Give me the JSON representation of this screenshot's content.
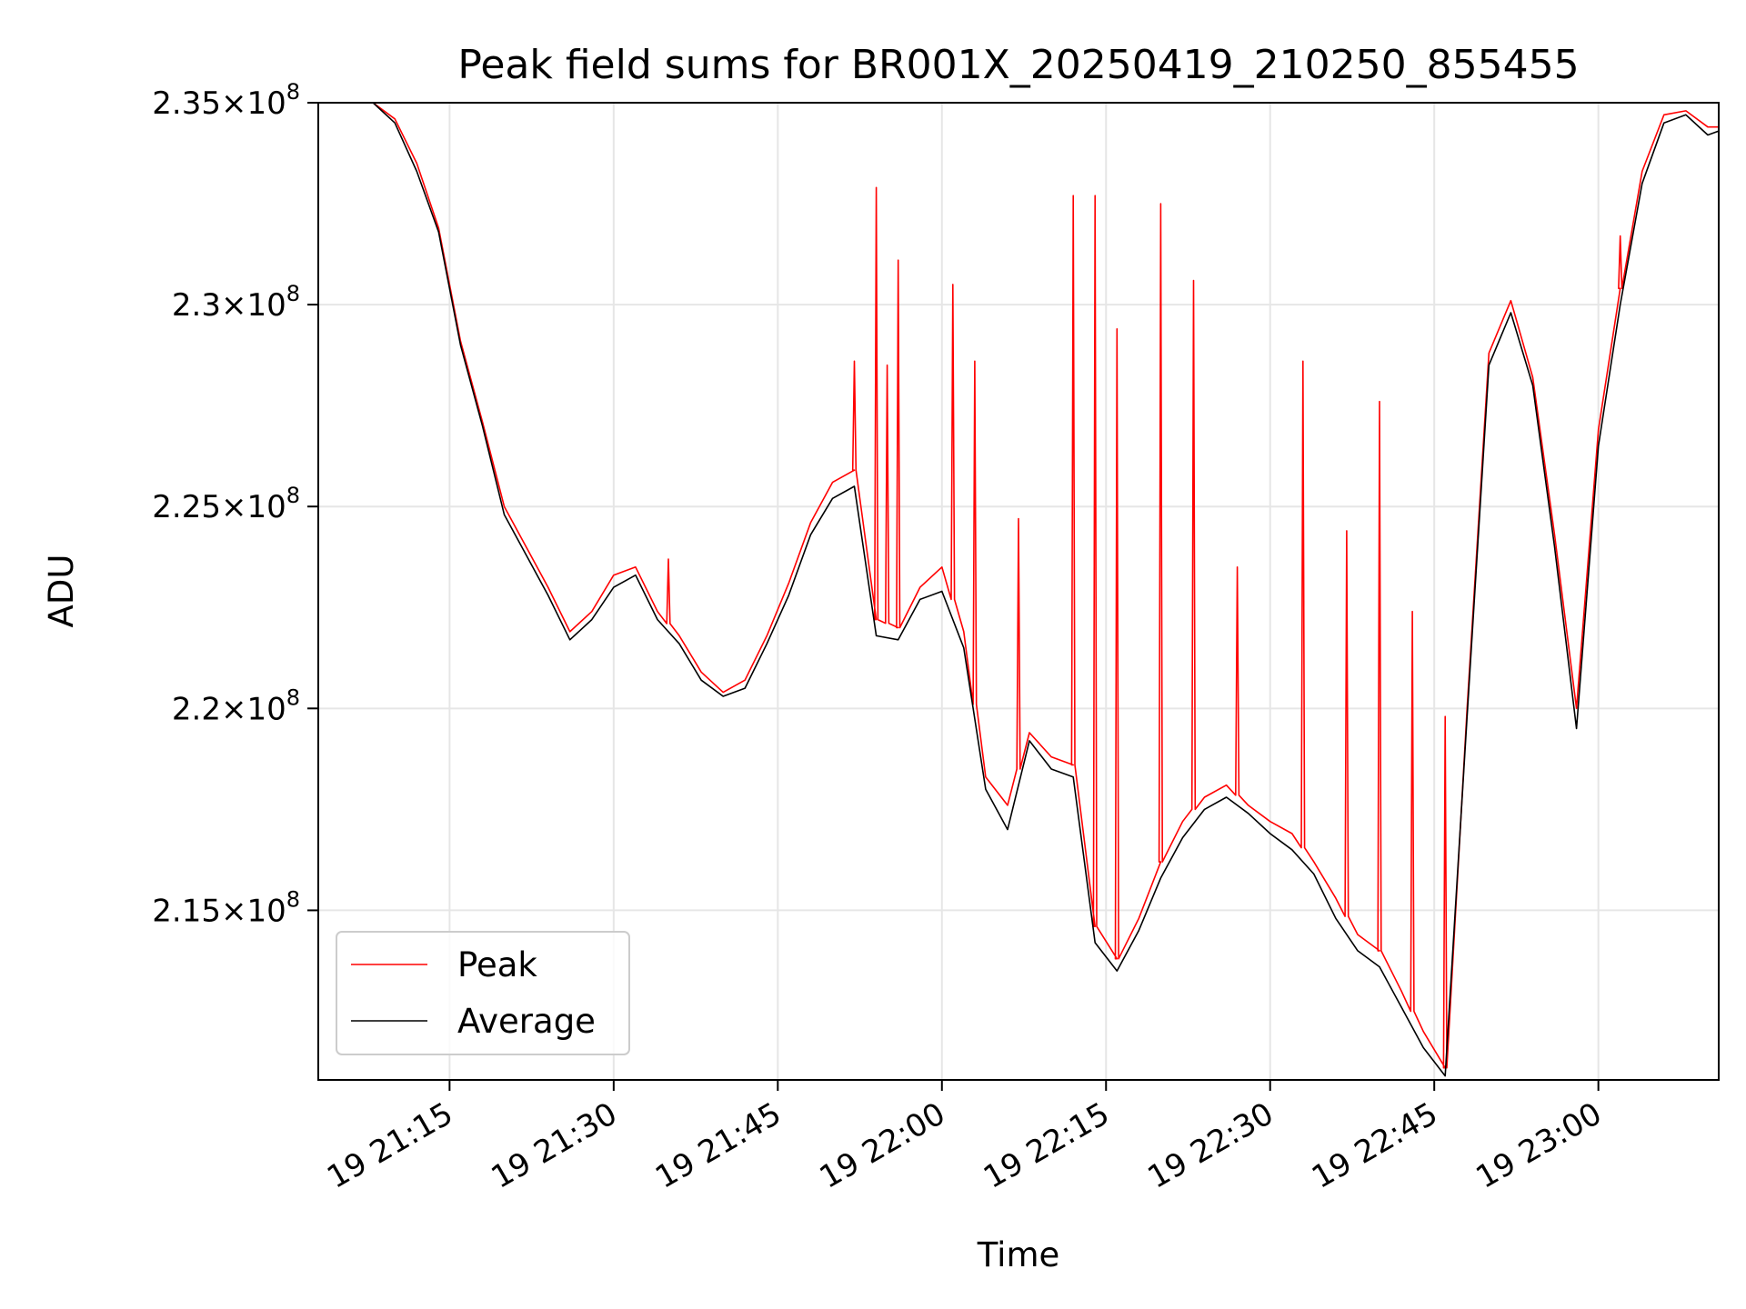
{
  "chart_data": {
    "type": "line",
    "title": "Peak field sums for BR001X_20250419_210250_855455",
    "xlabel": "Time",
    "ylabel": "ADU",
    "xlim": [
      "2025-04-19 21:03:00",
      "2025-04-19 23:11:00"
    ],
    "ylim": [
      210800000,
      235000000
    ],
    "grid": true,
    "legend_position": "lower-left",
    "x_ticks": [
      {
        "value": "2025-04-19 21:15",
        "label": "19 21:15"
      },
      {
        "value": "2025-04-19 21:30",
        "label": "19 21:30"
      },
      {
        "value": "2025-04-19 21:45",
        "label": "19 21:45"
      },
      {
        "value": "2025-04-19 22:00",
        "label": "19 22:00"
      },
      {
        "value": "2025-04-19 22:15",
        "label": "19 22:15"
      },
      {
        "value": "2025-04-19 22:30",
        "label": "19 22:30"
      },
      {
        "value": "2025-04-19 22:45",
        "label": "19 22:45"
      },
      {
        "value": "2025-04-19 23:00",
        "label": "19 23:00"
      }
    ],
    "y_ticks": [
      {
        "value": 215000000,
        "mantissa": "2.15",
        "exponent": "8"
      },
      {
        "value": 220000000,
        "mantissa": "2.2",
        "exponent": "8"
      },
      {
        "value": 225000000,
        "mantissa": "2.25",
        "exponent": "8"
      },
      {
        "value": 230000000,
        "mantissa": "2.3",
        "exponent": "8"
      },
      {
        "value": 235000000,
        "mantissa": "2.35",
        "exponent": "8"
      }
    ],
    "series": [
      {
        "name": "Average",
        "color": "#000000",
        "x": [
          "2025-04-19 21:08",
          "2025-04-19 21:10",
          "2025-04-19 21:12",
          "2025-04-19 21:14",
          "2025-04-19 21:16",
          "2025-04-19 21:18",
          "2025-04-19 21:20",
          "2025-04-19 21:22",
          "2025-04-19 21:24",
          "2025-04-19 21:26",
          "2025-04-19 21:28",
          "2025-04-19 21:30",
          "2025-04-19 21:32",
          "2025-04-19 21:34",
          "2025-04-19 21:36",
          "2025-04-19 21:38",
          "2025-04-19 21:40",
          "2025-04-19 21:42",
          "2025-04-19 21:44",
          "2025-04-19 21:46",
          "2025-04-19 21:48",
          "2025-04-19 21:50",
          "2025-04-19 21:52",
          "2025-04-19 21:54",
          "2025-04-19 21:56",
          "2025-04-19 21:58",
          "2025-04-19 22:00",
          "2025-04-19 22:02",
          "2025-04-19 22:04",
          "2025-04-19 22:06",
          "2025-04-19 22:08",
          "2025-04-19 22:10",
          "2025-04-19 22:12",
          "2025-04-19 22:14",
          "2025-04-19 22:16",
          "2025-04-19 22:18",
          "2025-04-19 22:20",
          "2025-04-19 22:22",
          "2025-04-19 22:24",
          "2025-04-19 22:26",
          "2025-04-19 22:28",
          "2025-04-19 22:30",
          "2025-04-19 22:32",
          "2025-04-19 22:34",
          "2025-04-19 22:36",
          "2025-04-19 22:38",
          "2025-04-19 22:40",
          "2025-04-19 22:42",
          "2025-04-19 22:44",
          "2025-04-19 22:46",
          "2025-04-19 22:48",
          "2025-04-19 22:50",
          "2025-04-19 22:52",
          "2025-04-19 22:54",
          "2025-04-19 22:56",
          "2025-04-19 22:58",
          "2025-04-19 23:00",
          "2025-04-19 23:02",
          "2025-04-19 23:04",
          "2025-04-19 23:06",
          "2025-04-19 23:08",
          "2025-04-19 23:10",
          "2025-04-19 23:11"
        ],
        "values": [
          235000000,
          234500000,
          233300000,
          231800000,
          229000000,
          227000000,
          224800000,
          223800000,
          222800000,
          221700000,
          222200000,
          223000000,
          223300000,
          222200000,
          221600000,
          220700000,
          220300000,
          220500000,
          221600000,
          222800000,
          224300000,
          225200000,
          225500000,
          221800000,
          221700000,
          222700000,
          222900000,
          221500000,
          218000000,
          217000000,
          219200000,
          218500000,
          218300000,
          214200000,
          213500000,
          214500000,
          215800000,
          216800000,
          217500000,
          217800000,
          217400000,
          216900000,
          216500000,
          215900000,
          214800000,
          214000000,
          213600000,
          212600000,
          211600000,
          210900000,
          219800000,
          228500000,
          229800000,
          228000000,
          224000000,
          219500000,
          226500000,
          230000000,
          233000000,
          234500000,
          234700000,
          234200000,
          234300000
        ]
      },
      {
        "name": "Peak",
        "color": "#ff0000",
        "x": [
          "2025-04-19 21:08",
          "2025-04-19 21:10",
          "2025-04-19 21:12",
          "2025-04-19 21:14",
          "2025-04-19 21:16",
          "2025-04-19 21:18",
          "2025-04-19 21:20",
          "2025-04-19 21:22",
          "2025-04-19 21:24",
          "2025-04-19 21:26",
          "2025-04-19 21:28",
          "2025-04-19 21:30",
          "2025-04-19 21:32",
          "2025-04-19 21:34",
          "2025-04-19 21:36",
          "2025-04-19 21:38",
          "2025-04-19 21:40",
          "2025-04-19 21:42",
          "2025-04-19 21:44",
          "2025-04-19 21:46",
          "2025-04-19 21:48",
          "2025-04-19 21:50",
          "2025-04-19 21:52",
          "2025-04-19 21:54",
          "2025-04-19 21:56",
          "2025-04-19 21:58",
          "2025-04-19 22:00",
          "2025-04-19 22:02",
          "2025-04-19 22:04",
          "2025-04-19 22:06",
          "2025-04-19 22:08",
          "2025-04-19 22:10",
          "2025-04-19 22:12",
          "2025-04-19 22:14",
          "2025-04-19 22:16",
          "2025-04-19 22:18",
          "2025-04-19 22:20",
          "2025-04-19 22:22",
          "2025-04-19 22:24",
          "2025-04-19 22:26",
          "2025-04-19 22:28",
          "2025-04-19 22:30",
          "2025-04-19 22:32",
          "2025-04-19 22:34",
          "2025-04-19 22:36",
          "2025-04-19 22:38",
          "2025-04-19 22:40",
          "2025-04-19 22:42",
          "2025-04-19 22:44",
          "2025-04-19 22:46",
          "2025-04-19 22:48",
          "2025-04-19 22:50",
          "2025-04-19 22:52",
          "2025-04-19 22:54",
          "2025-04-19 22:56",
          "2025-04-19 22:58",
          "2025-04-19 23:00",
          "2025-04-19 23:02",
          "2025-04-19 23:04",
          "2025-04-19 23:06",
          "2025-04-19 23:08",
          "2025-04-19 23:10",
          "2025-04-19 23:11"
        ],
        "values": [
          235000000,
          234600000,
          233500000,
          231900000,
          229100000,
          227100000,
          225000000,
          224000000,
          223000000,
          221900000,
          222400000,
          223300000,
          223500000,
          222400000,
          221800000,
          220900000,
          220400000,
          220700000,
          221800000,
          223100000,
          224600000,
          225600000,
          225900000,
          222200000,
          222000000,
          223000000,
          223500000,
          221900000,
          218300000,
          217600000,
          219400000,
          218800000,
          218600000,
          214600000,
          213800000,
          214800000,
          216200000,
          217200000,
          217800000,
          218100000,
          217600000,
          217200000,
          216900000,
          216200000,
          215300000,
          214400000,
          214000000,
          213000000,
          212000000,
          211100000,
          220000000,
          228800000,
          230100000,
          228200000,
          224300000,
          220000000,
          226900000,
          230400000,
          233300000,
          234700000,
          234800000,
          234400000,
          234400000
        ],
        "spikes": [
          {
            "x": "2025-04-19 21:35",
            "value": 223700000
          },
          {
            "x": "2025-04-19 21:52",
            "value": 228600000
          },
          {
            "x": "2025-04-19 21:54",
            "value": 232900000
          },
          {
            "x": "2025-04-19 21:55",
            "value": 228500000
          },
          {
            "x": "2025-04-19 21:56",
            "value": 231100000
          },
          {
            "x": "2025-04-19 22:01",
            "value": 230500000
          },
          {
            "x": "2025-04-19 22:03",
            "value": 228600000
          },
          {
            "x": "2025-04-19 22:07",
            "value": 224700000
          },
          {
            "x": "2025-04-19 22:12",
            "value": 232700000
          },
          {
            "x": "2025-04-19 22:14",
            "value": 232700000
          },
          {
            "x": "2025-04-19 22:16",
            "value": 229400000
          },
          {
            "x": "2025-04-19 22:20",
            "value": 232500000
          },
          {
            "x": "2025-04-19 22:23",
            "value": 230600000
          },
          {
            "x": "2025-04-19 22:27",
            "value": 223500000
          },
          {
            "x": "2025-04-19 22:33",
            "value": 228600000
          },
          {
            "x": "2025-04-19 22:37",
            "value": 224400000
          },
          {
            "x": "2025-04-19 22:40",
            "value": 227600000
          },
          {
            "x": "2025-04-19 22:43",
            "value": 222400000
          },
          {
            "x": "2025-04-19 22:46",
            "value": 219800000
          },
          {
            "x": "2025-04-19 23:02",
            "value": 231700000
          }
        ]
      }
    ]
  }
}
